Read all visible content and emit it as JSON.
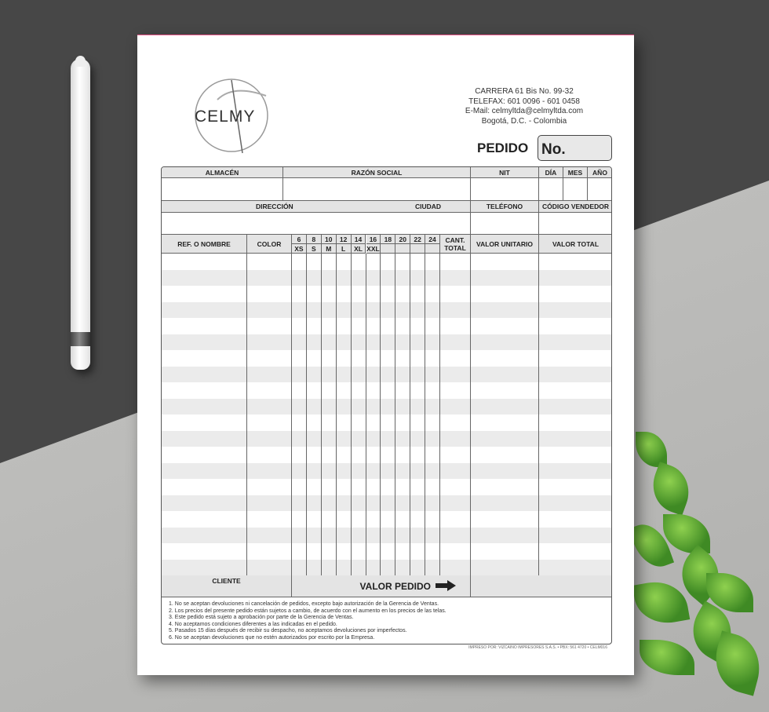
{
  "company": {
    "logo_text": "CELMY",
    "address_lines": [
      "CARRERA 61 Bis No. 99-32",
      "TELEFAX: 601 0096 - 601 0458",
      "E-Mail: celmyltda@celmyltda.com",
      "Bogotá, D.C. - Colombia"
    ]
  },
  "title": "PEDIDO",
  "number_label": "No.",
  "header1": [
    "ALMACÉN",
    "RAZÓN SOCIAL",
    "NIT",
    "DÍA",
    "MES",
    "AÑO"
  ],
  "header2": {
    "direccion": "DIRECCIÓN",
    "ciudad": "CIUDAD",
    "telefono": "TELÉFONO",
    "codigo": "CÓDIGO VENDEDOR"
  },
  "items_header": {
    "ref": "REF. O NOMBRE",
    "color": "COLOR",
    "sizes": [
      "6",
      "8",
      "10",
      "12",
      "14",
      "16",
      "18",
      "20",
      "22",
      "24"
    ],
    "size_letters": [
      "XS",
      "S",
      "M",
      "L",
      "XL",
      "XXL",
      "",
      "",
      "",
      ""
    ],
    "cant": "CANT. TOTAL",
    "unit": "VALOR UNITARIO",
    "total": "VALOR TOTAL"
  },
  "footer_row": {
    "cliente": "CLIENTE",
    "valor_pedido": "VALOR PEDIDO"
  },
  "notes": [
    "1. No se aceptan devoluciones ni cancelación de pedidos, excepto bajo autorización de la Gerencia de Ventas.",
    "2. Los precios del presente pedido están sujetos a cambio, de acuerdo con el aumento en los precios de las telas.",
    "3. Este pedido está sujeto a aprobación por parte de la Gerencia de Ventas.",
    "4. No aceptamos condiciones diferentes a las indicadas en el pedido.",
    "5. Pasados 15 días después de recibir su despacho, no aceptamos devoluciones por imperfectos.",
    "6. No se aceptan devoluciones que no estén autorizados por escrito por la Empresa."
  ],
  "printer": "IMPRESO POR: VIZCAINO IMPRESORES S.A.S. • PBX: 561 4720 • CELM016"
}
